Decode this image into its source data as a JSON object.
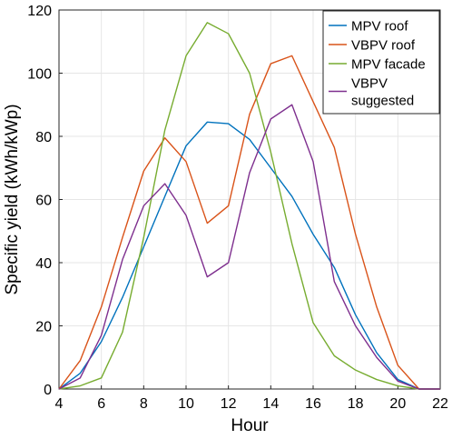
{
  "chart_data": {
    "type": "line",
    "xlabel": "Hour",
    "ylabel": "Specific yield (kWh/kWp)",
    "xlim": [
      4,
      22
    ],
    "ylim": [
      0,
      120
    ],
    "xticks": [
      4,
      6,
      8,
      10,
      12,
      14,
      16,
      18,
      20,
      22
    ],
    "yticks": [
      0,
      20,
      40,
      60,
      80,
      100,
      120
    ],
    "grid": true,
    "legend_position": "top-right",
    "series": [
      {
        "name": "MPV roof",
        "color": "#0072BD",
        "x": [
          4,
          5,
          6,
          7,
          8,
          9,
          10,
          11,
          12,
          13,
          14,
          15,
          16,
          17,
          18,
          19,
          20,
          21,
          22
        ],
        "values": [
          0,
          5,
          15,
          29,
          45,
          61,
          77,
          84.5,
          84,
          79,
          70,
          61,
          49,
          38.5,
          23.5,
          11.5,
          3,
          0,
          0
        ]
      },
      {
        "name": "VBPV roof",
        "color": "#D95319",
        "x": [
          4,
          5,
          6,
          7,
          8,
          9,
          10,
          11,
          12,
          13,
          14,
          15,
          16,
          17,
          18,
          19,
          20,
          21,
          22
        ],
        "values": [
          0,
          9,
          26,
          48,
          69,
          79.5,
          72,
          52.5,
          58,
          87,
          103,
          105.5,
          91,
          76.5,
          49,
          26,
          7.5,
          0,
          0
        ]
      },
      {
        "name": "MPV facade",
        "color": "#77AC30",
        "x": [
          4,
          5,
          6,
          7,
          8,
          9,
          10,
          11,
          12,
          13,
          14,
          15,
          16,
          17,
          18,
          19,
          20,
          21,
          22
        ],
        "values": [
          0,
          1,
          3.5,
          18,
          48,
          82,
          105.5,
          116,
          112.5,
          100,
          75,
          46,
          21,
          10.5,
          6,
          3,
          1,
          0,
          0
        ]
      },
      {
        "name": "VBPV\nsuggested",
        "legend_lines": [
          "VBPV",
          "suggested"
        ],
        "color": "#7E2F8E",
        "x": [
          4,
          5,
          6,
          7,
          8,
          9,
          10,
          11,
          12,
          13,
          14,
          15,
          16,
          17,
          18,
          19,
          20,
          21,
          22
        ],
        "values": [
          0,
          3.5,
          17,
          41,
          58,
          65,
          55,
          35.5,
          40,
          68.5,
          85.5,
          90,
          72,
          34,
          20,
          10,
          2.5,
          0,
          0
        ]
      }
    ]
  }
}
